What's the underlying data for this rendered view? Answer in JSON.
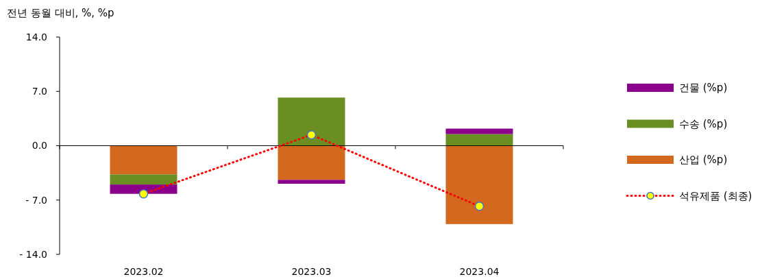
{
  "chart_data": {
    "type": "bar",
    "stacked": true,
    "ylabel": "전년 동월 대비, %, %p",
    "categories": [
      "2023.02",
      "2023.03",
      "2023.04"
    ],
    "ylim": [
      -14,
      14
    ],
    "yticks": [
      {
        "value": -14,
        "label": "- 14.0"
      },
      {
        "value": -7,
        "label": "- 7.0"
      },
      {
        "value": 0,
        "label": "0.0"
      },
      {
        "value": 7,
        "label": "7.0"
      },
      {
        "value": 14,
        "label": "14.0"
      }
    ],
    "legend": "right",
    "series": [
      {
        "name": "산업 (%p)",
        "color": "#d2691e",
        "values": [
          -3.7,
          -4.4,
          -10.1
        ]
      },
      {
        "name": "수송 (%p)",
        "color": "#6b8e23",
        "values": [
          -1.3,
          6.2,
          1.5
        ]
      },
      {
        "name": "건물 (%p)",
        "color": "#8b008b",
        "values": [
          -1.2,
          -0.5,
          0.7
        ]
      },
      {
        "name": "석유제품 (최종)",
        "type": "line",
        "color": "#ff0000",
        "line_style": "dotted",
        "marker": "circle",
        "values": [
          -6.2,
          1.4,
          -7.8
        ]
      }
    ]
  }
}
